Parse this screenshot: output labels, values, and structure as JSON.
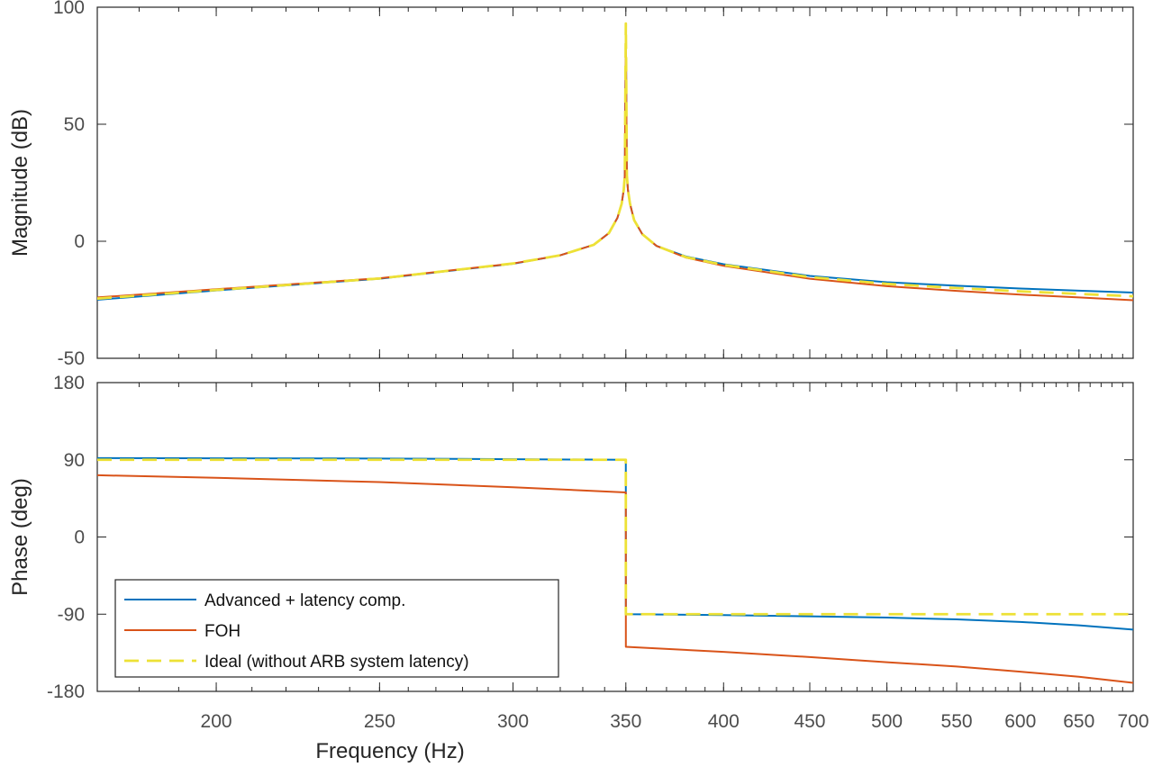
{
  "chart_data": [
    {
      "type": "line",
      "panel": "magnitude",
      "title": "",
      "xlabel": "",
      "ylabel": "Magnitude (dB)",
      "xscale": "log",
      "xlim": [
        170,
        700
      ],
      "ylim": [
        -50,
        100
      ],
      "yticks": [
        -50,
        0,
        50,
        100
      ],
      "ytick_labels": [
        "-50",
        "0",
        "50",
        "100"
      ],
      "x": [
        170,
        200,
        250,
        300,
        320,
        335,
        342,
        346,
        348,
        349,
        349.5,
        350,
        350.5,
        351,
        352,
        354,
        358,
        365,
        380,
        400,
        450,
        500,
        550,
        600,
        650,
        700
      ],
      "series": [
        {
          "name": "Advanced + latency comp.",
          "color": "#0072BD",
          "style": "solid",
          "values": [
            -25,
            -21,
            -16,
            -9.6,
            -6,
            -1.5,
            3.5,
            10,
            16,
            22,
            28,
            90,
            28,
            22,
            16,
            9,
            3,
            -2,
            -6.5,
            -9.8,
            -14.8,
            -17.5,
            -19,
            -20.2,
            -21.1,
            -21.9
          ]
        },
        {
          "name": "FOH",
          "color": "#D95319",
          "style": "solid",
          "values": [
            -24,
            -20.5,
            -15.8,
            -9.5,
            -6,
            -1.5,
            3.5,
            10,
            16,
            22,
            28,
            92,
            28,
            22,
            16,
            9,
            3,
            -2,
            -7,
            -10.5,
            -16,
            -19.2,
            -21.2,
            -22.8,
            -24,
            -25.2
          ]
        },
        {
          "name": "Ideal (without ARB system latency)",
          "color": "#EDE136",
          "style": "dashed",
          "values": [
            -24.5,
            -20.8,
            -15.9,
            -9.5,
            -6,
            -1.5,
            3.5,
            10,
            16,
            22,
            28,
            93,
            28,
            22,
            16,
            9,
            3,
            -2,
            -6.8,
            -10.1,
            -15.3,
            -18.2,
            -20,
            -21.4,
            -22.5,
            -23.5
          ]
        }
      ]
    },
    {
      "type": "line",
      "panel": "phase",
      "title": "",
      "xlabel": "Frequency (Hz)",
      "ylabel": "Phase (deg)",
      "xscale": "log",
      "xlim": [
        170,
        700
      ],
      "ylim": [
        -180,
        180
      ],
      "xticks": [
        200,
        250,
        300,
        350,
        400,
        450,
        500,
        550,
        600,
        650,
        700
      ],
      "xtick_labels": [
        "200",
        "250",
        "300",
        "350",
        "400",
        "450",
        "500",
        "550",
        "600",
        "650",
        "700"
      ],
      "yticks": [
        -180,
        -90,
        0,
        90,
        180
      ],
      "ytick_labels": [
        "-180",
        "-90",
        "0",
        "90",
        "180"
      ],
      "legend_location": "bottom-left",
      "series": [
        {
          "name": "Advanced + latency comp.",
          "color": "#0072BD",
          "style": "solid",
          "x": [
            170,
            250,
            349.99,
            350.01,
            400,
            450,
            500,
            550,
            600,
            650,
            700
          ],
          "values": [
            92,
            91.5,
            90,
            -90,
            -91,
            -92.5,
            -94,
            -96,
            -99,
            -103,
            -108
          ]
        },
        {
          "name": "FOH",
          "color": "#D95319",
          "style": "solid",
          "x": [
            170,
            200,
            250,
            300,
            349.99,
            350.01,
            400,
            450,
            500,
            550,
            600,
            650,
            700
          ],
          "values": [
            72,
            69,
            64,
            58,
            52,
            -128,
            -134,
            -140,
            -146,
            -151,
            -157,
            -163,
            -170
          ]
        },
        {
          "name": "Ideal (without ARB system latency)",
          "color": "#EDE136",
          "style": "dashed",
          "x": [
            170,
            349.99,
            350.01,
            700
          ],
          "values": [
            90,
            90,
            -90,
            -90
          ]
        }
      ]
    }
  ]
}
